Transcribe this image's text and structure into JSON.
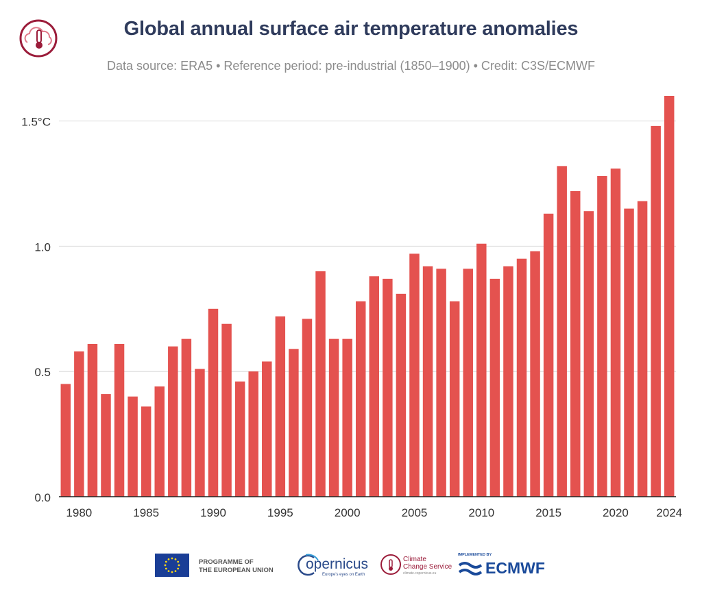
{
  "header": {
    "title": "Global annual surface air temperature anomalies",
    "subtitle": "Data source: ERA5 • Reference period: pre-industrial (1850–1900) • Credit: C3S/ECMWF"
  },
  "colors": {
    "bar": "#e4524f",
    "title": "#2f3b5c",
    "brand_c3s": "#9b1c3a",
    "eu_blue": "#1a3e96",
    "eu_yellow": "#ffd617",
    "ecmwf_blue": "#1a4a9a"
  },
  "chart_data": {
    "type": "bar",
    "x": [
      1979,
      1980,
      1981,
      1982,
      1983,
      1984,
      1985,
      1986,
      1987,
      1988,
      1989,
      1990,
      1991,
      1992,
      1993,
      1994,
      1995,
      1996,
      1997,
      1998,
      1999,
      2000,
      2001,
      2002,
      2003,
      2004,
      2005,
      2006,
      2007,
      2008,
      2009,
      2010,
      2011,
      2012,
      2013,
      2014,
      2015,
      2016,
      2017,
      2018,
      2019,
      2020,
      2021,
      2022,
      2023,
      2024
    ],
    "values": [
      0.45,
      0.58,
      0.61,
      0.41,
      0.61,
      0.4,
      0.36,
      0.44,
      0.6,
      0.63,
      0.51,
      0.75,
      0.69,
      0.46,
      0.5,
      0.54,
      0.72,
      0.59,
      0.71,
      0.9,
      0.63,
      0.63,
      0.78,
      0.88,
      0.87,
      0.81,
      0.97,
      0.92,
      0.91,
      0.78,
      0.91,
      1.01,
      0.87,
      0.92,
      0.95,
      0.98,
      1.13,
      1.32,
      1.22,
      1.14,
      1.28,
      1.31,
      1.15,
      1.18,
      1.48,
      1.6
    ],
    "xticks": [
      "1980",
      "1985",
      "1990",
      "1995",
      "2000",
      "2005",
      "2010",
      "2015",
      "2020",
      "2024"
    ],
    "xtick_years": [
      1980,
      1985,
      1990,
      1995,
      2000,
      2005,
      2010,
      2015,
      2020,
      2024
    ],
    "yticks": [
      "0.0",
      "0.5",
      "1.0",
      "1.5°C"
    ],
    "ytick_values": [
      0,
      0.5,
      1.0,
      1.5
    ],
    "ylim": [
      0,
      1.6
    ],
    "grid": true,
    "xlabel": "",
    "ylabel": ""
  },
  "footer": {
    "programme": "PROGRAMME OF\nTHE EUROPEAN UNION",
    "copernicus": "opernicus",
    "copernicus_tagline": "Europe's eyes on Earth",
    "c3s_name": "Climate\nChange Service",
    "c3s_url": "climate.copernicus.eu",
    "implemented_by": "IMPLEMENTED BY",
    "ecmwf": "ECMWF"
  }
}
